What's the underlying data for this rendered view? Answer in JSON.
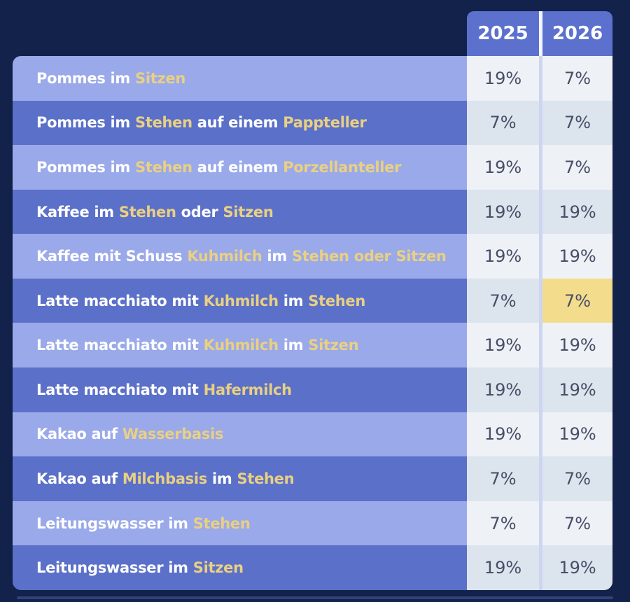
{
  "table": {
    "columns": [
      "2025",
      "2026"
    ],
    "rows": [
      {
        "segments": [
          {
            "text": "Pommes im ",
            "yellow": false
          },
          {
            "text": "Sitzen",
            "yellow": true
          }
        ],
        "values": [
          "19%",
          "7%"
        ],
        "highlight_col": null
      },
      {
        "segments": [
          {
            "text": "Pommes im ",
            "yellow": false
          },
          {
            "text": "Stehen",
            "yellow": true
          },
          {
            "text": " auf einem ",
            "yellow": false
          },
          {
            "text": "Pappteller",
            "yellow": true
          }
        ],
        "values": [
          "7%",
          "7%"
        ],
        "highlight_col": null
      },
      {
        "segments": [
          {
            "text": "Pommes im ",
            "yellow": false
          },
          {
            "text": "Stehen",
            "yellow": true
          },
          {
            "text": " auf einem ",
            "yellow": false
          },
          {
            "text": "Porzellanteller",
            "yellow": true
          }
        ],
        "values": [
          "19%",
          "7%"
        ],
        "highlight_col": null
      },
      {
        "segments": [
          {
            "text": "Kaffee im ",
            "yellow": false
          },
          {
            "text": "Stehen",
            "yellow": true
          },
          {
            "text": " oder ",
            "yellow": false
          },
          {
            "text": "Sitzen",
            "yellow": true
          }
        ],
        "values": [
          "19%",
          "19%"
        ],
        "highlight_col": null
      },
      {
        "segments": [
          {
            "text": "Kaffee mit Schuss ",
            "yellow": false
          },
          {
            "text": "Kuhmilch",
            "yellow": true
          },
          {
            "text": " im ",
            "yellow": false
          },
          {
            "text": "Stehen oder Sitzen",
            "yellow": true
          }
        ],
        "values": [
          "19%",
          "19%"
        ],
        "highlight_col": null
      },
      {
        "segments": [
          {
            "text": "Latte macchiato mit ",
            "yellow": false
          },
          {
            "text": "Kuhmilch",
            "yellow": true
          },
          {
            "text": " im ",
            "yellow": false
          },
          {
            "text": "Stehen",
            "yellow": true
          }
        ],
        "values": [
          "7%",
          "7%"
        ],
        "highlight_col": 1
      },
      {
        "segments": [
          {
            "text": "Latte macchiato mit ",
            "yellow": false
          },
          {
            "text": "Kuhmilch",
            "yellow": true
          },
          {
            "text": " im ",
            "yellow": false
          },
          {
            "text": "Sitzen",
            "yellow": true
          }
        ],
        "values": [
          "19%",
          "19%"
        ],
        "highlight_col": null
      },
      {
        "segments": [
          {
            "text": "Latte macchiato mit ",
            "yellow": false
          },
          {
            "text": "Hafermilch",
            "yellow": true
          }
        ],
        "values": [
          "19%",
          "19%"
        ],
        "highlight_col": null
      },
      {
        "segments": [
          {
            "text": "Kakao auf ",
            "yellow": false
          },
          {
            "text": "Wasserbasis",
            "yellow": true
          }
        ],
        "values": [
          "19%",
          "19%"
        ],
        "highlight_col": null
      },
      {
        "segments": [
          {
            "text": "Kakao auf ",
            "yellow": false
          },
          {
            "text": "Milchbasis",
            "yellow": true
          },
          {
            "text": " im ",
            "yellow": false
          },
          {
            "text": "Stehen",
            "yellow": true
          }
        ],
        "values": [
          "7%",
          "7%"
        ],
        "highlight_col": null
      },
      {
        "segments": [
          {
            "text": "Leitungswasser im ",
            "yellow": false
          },
          {
            "text": "Stehen",
            "yellow": true
          }
        ],
        "values": [
          "7%",
          "7%"
        ],
        "highlight_col": null
      },
      {
        "segments": [
          {
            "text": "Leitungswasser im ",
            "yellow": false
          },
          {
            "text": "Sitzen",
            "yellow": true
          }
        ],
        "values": [
          "19%",
          "19%"
        ],
        "highlight_col": null
      }
    ]
  },
  "chart_data": {
    "type": "table",
    "columns": [
      "",
      "2025",
      "2026"
    ],
    "rows": [
      [
        "Pommes im Sitzen",
        "19%",
        "7%"
      ],
      [
        "Pommes im Stehen auf einem Pappteller",
        "7%",
        "7%"
      ],
      [
        "Pommes im Stehen auf einem Porzellanteller",
        "19%",
        "7%"
      ],
      [
        "Kaffee im Stehen oder Sitzen",
        "19%",
        "19%"
      ],
      [
        "Kaffee mit Schuss Kuhmilch im Stehen oder Sitzen",
        "19%",
        "19%"
      ],
      [
        "Latte macchiato mit Kuhmilch im Stehen",
        "7%",
        "7%"
      ],
      [
        "Latte macchiato mit Kuhmilch im Sitzen",
        "19%",
        "19%"
      ],
      [
        "Latte macchiato mit Hafermilch",
        "19%",
        "19%"
      ],
      [
        "Kakao auf Wasserbasis",
        "19%",
        "19%"
      ],
      [
        "Kakao auf Milchbasis im Stehen",
        "7%",
        "7%"
      ],
      [
        "Leitungswasser im Stehen",
        "7%",
        "7%"
      ],
      [
        "Leitungswasser im Sitzen",
        "19%",
        "19%"
      ]
    ],
    "annotations": [
      "Highlighted cell: 'Latte macchiato mit Kuhmilch im Stehen' in 2026 = 7% (yellow)"
    ]
  },
  "colors": {
    "background": "#13224a",
    "row_light": "#9aa9e9",
    "row_dark": "#5b70c8",
    "header_blue": "#5c71ce",
    "cell_light": "#eef1f6",
    "cell_shaded": "#dce4ee",
    "highlight_yellow": "#f3dc8c",
    "text_white": "#ffffff",
    "text_yellow": "#e9d083",
    "text_value": "#474e66",
    "divider": "#ccd6f0",
    "divider_header": "#f2f5fc"
  }
}
